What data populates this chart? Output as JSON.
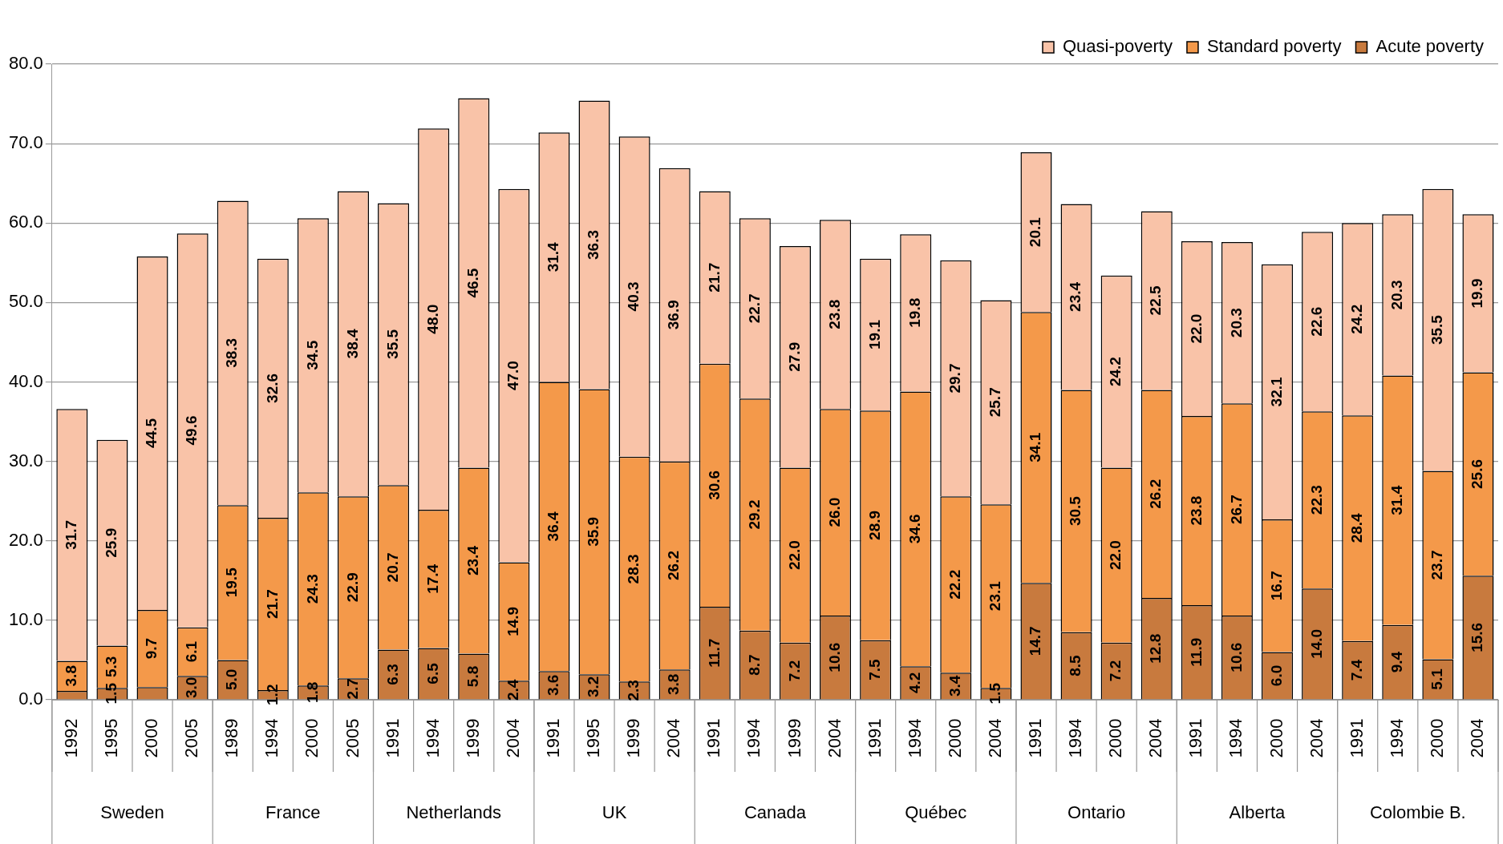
{
  "chart_data": {
    "type": "bar",
    "stacked": true,
    "categories": [
      "1992",
      "1995",
      "2000",
      "2005",
      "1989",
      "1994",
      "2000",
      "2005",
      "1991",
      "1994",
      "1999",
      "2004",
      "1991",
      "1995",
      "1999",
      "2004",
      "1991",
      "1994",
      "1999",
      "2004",
      "1991",
      "1994",
      "2000",
      "2004",
      "1991",
      "1994",
      "2000",
      "2004",
      "1991",
      "1994",
      "2000",
      "2004",
      "1991",
      "1994",
      "2000",
      "2004"
    ],
    "series": [
      {
        "name": "Acute poverty",
        "color": "#c87a3e",
        "values": [
          1.1,
          1.5,
          1.6,
          3.0,
          5.0,
          1.2,
          1.8,
          2.7,
          6.3,
          6.5,
          5.8,
          2.4,
          3.6,
          3.2,
          2.3,
          3.8,
          11.7,
          8.7,
          7.2,
          10.6,
          7.5,
          4.2,
          3.4,
          1.5,
          14.7,
          8.5,
          7.2,
          12.8,
          11.9,
          10.6,
          6.0,
          14.0,
          7.4,
          9.4,
          5.1,
          15.6
        ],
        "value_labels": [
          null,
          "1.5",
          null,
          "3.0",
          "5.0",
          "1.2",
          "1.8",
          "2.7",
          "6.3",
          "6.5",
          "5.8",
          "2.4",
          "3.6",
          "3.2",
          "2.3",
          "3.8",
          "11.7",
          "8.7",
          "7.2",
          "10.6",
          "7.5",
          "4.2",
          "3.4",
          "1.5",
          "14.7",
          "8.5",
          "7.2",
          "12.8",
          "11.9",
          "10.6",
          "6.0",
          "14.0",
          "7.4",
          "9.4",
          "5.1",
          "15.6"
        ]
      },
      {
        "name": "Standard poverty",
        "color": "#f4994a",
        "values": [
          3.8,
          5.3,
          9.7,
          6.1,
          19.5,
          21.7,
          24.3,
          22.9,
          20.7,
          17.4,
          23.4,
          14.9,
          36.4,
          35.9,
          28.3,
          26.2,
          30.6,
          29.2,
          22.0,
          26.0,
          28.9,
          34.6,
          22.2,
          23.1,
          34.1,
          30.5,
          22.0,
          26.2,
          23.8,
          26.7,
          16.7,
          22.3,
          28.4,
          31.4,
          23.7,
          25.6
        ],
        "value_labels": [
          "3.8",
          "5.3",
          "9.7",
          "6.1",
          "19.5",
          "21.7",
          "24.3",
          "22.9",
          "20.7",
          "17.4",
          "23.4",
          "14.9",
          "36.4",
          "35.9",
          "28.3",
          "26.2",
          "30.6",
          "29.2",
          "22.0",
          "26.0",
          "28.9",
          "34.6",
          "22.2",
          "23.1",
          "34.1",
          "30.5",
          "22.0",
          "26.2",
          "23.8",
          "26.7",
          "16.7",
          "22.3",
          "28.4",
          "31.4",
          "23.7",
          "25.6"
        ]
      },
      {
        "name": "Quasi-poverty",
        "color": "#f9c3a8",
        "values": [
          31.7,
          25.9,
          44.5,
          49.6,
          38.3,
          32.6,
          34.5,
          38.4,
          35.5,
          48.0,
          46.5,
          47.0,
          31.4,
          36.3,
          40.3,
          36.9,
          21.7,
          22.7,
          27.9,
          23.8,
          19.1,
          19.8,
          29.7,
          25.7,
          20.1,
          23.4,
          24.2,
          22.5,
          22.0,
          20.3,
          32.1,
          22.6,
          24.2,
          20.3,
          35.5,
          19.9
        ],
        "value_labels": [
          "31.7",
          "25.9",
          "44.5",
          "49.6",
          "38.3",
          "32.6",
          "34.5",
          "38.4",
          "35.5",
          "48.0",
          "46.5",
          "47.0",
          "31.4",
          "36.3",
          "40.3",
          "36.9",
          "21.7",
          "22.7",
          "27.9",
          "23.8",
          "19.1",
          "19.8",
          "29.7",
          "25.7",
          "20.1",
          "23.4",
          "24.2",
          "22.5",
          "22.0",
          "20.3",
          "32.1",
          "22.6",
          "24.2",
          "20.3",
          "35.5",
          "19.9"
        ]
      }
    ],
    "annotations": [
      "Sweden",
      "France",
      "Netherlands",
      "UK",
      "Canada",
      "Québec",
      "Ontario",
      "Alberta",
      "Colombie B."
    ],
    "ylim": [
      0,
      80
    ],
    "yticks": [
      {
        "value": 0,
        "label": "0.0"
      },
      {
        "value": 10,
        "label": "10.0"
      },
      {
        "value": 20,
        "label": "20.0"
      },
      {
        "value": 30,
        "label": "30.0"
      },
      {
        "value": 40,
        "label": "40.0"
      },
      {
        "value": 50,
        "label": "50.0"
      },
      {
        "value": 60,
        "label": "60.0"
      },
      {
        "value": 70,
        "label": "70.0"
      },
      {
        "value": 80,
        "label": "80.0"
      }
    ],
    "grid": "y",
    "legend": "top right"
  }
}
